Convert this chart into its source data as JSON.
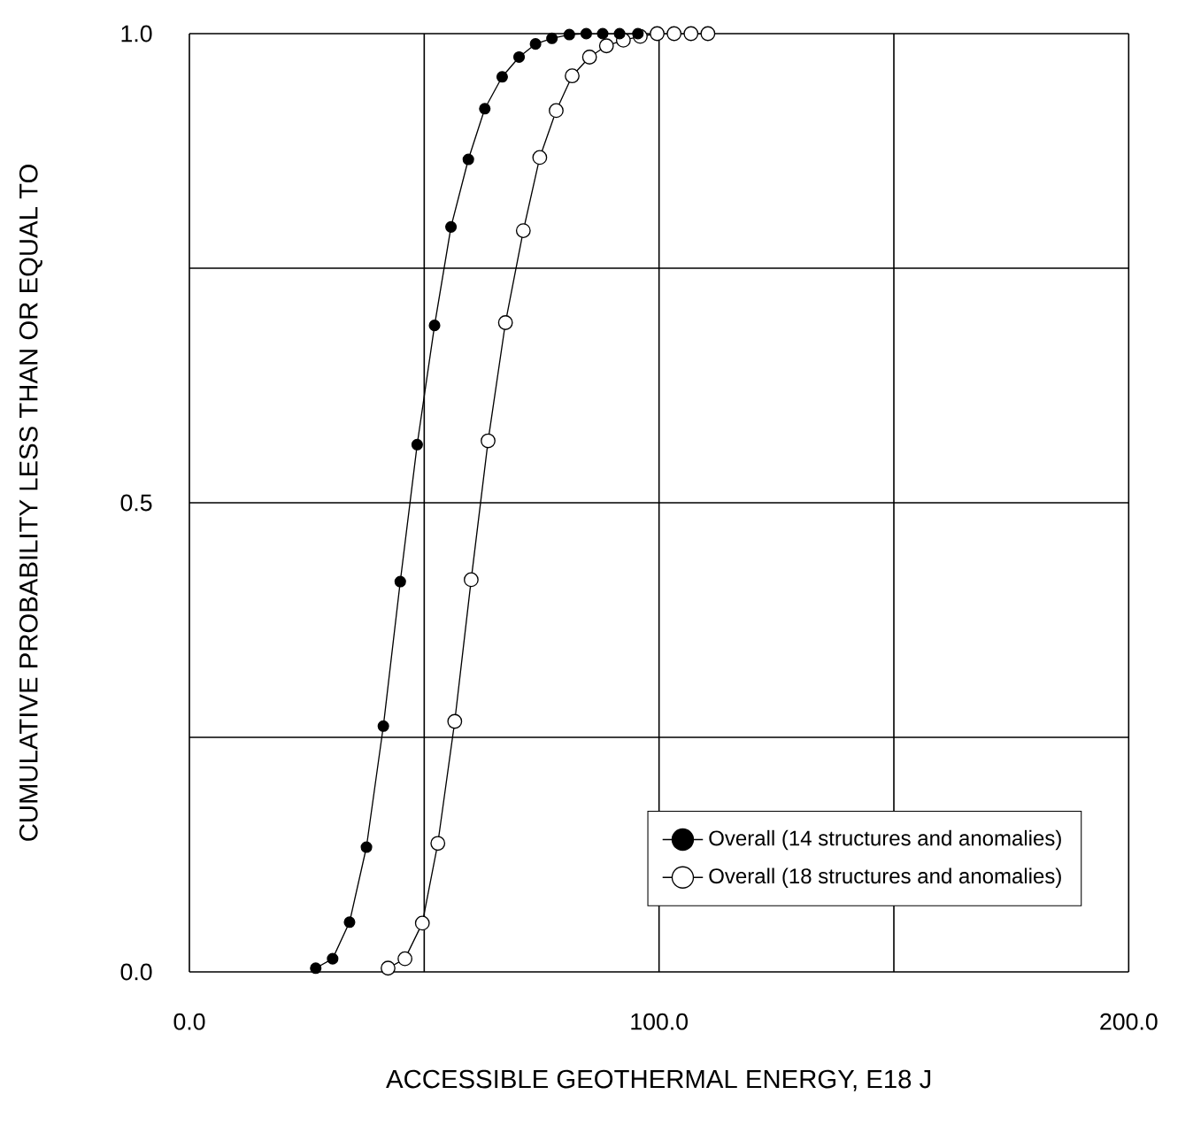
{
  "chart_data": {
    "type": "line",
    "xlabel": "ACCESSIBLE GEOTHERMAL ENERGY, E18 J",
    "ylabel": "CUMULATIVE PROBABILITY LESS THAN OR EQUAL TO",
    "xlim": [
      0,
      200
    ],
    "ylim": [
      0,
      1
    ],
    "xticks": [
      {
        "value": 0,
        "label": "0.0"
      },
      {
        "value": 50,
        "label": null
      },
      {
        "value": 100,
        "label": "100.0"
      },
      {
        "value": 150,
        "label": null
      },
      {
        "value": 200,
        "label": "200.0"
      }
    ],
    "yticks": [
      {
        "value": 0,
        "label": "0.0"
      },
      {
        "value": 0.25,
        "label": null
      },
      {
        "value": 0.5,
        "label": "0.5"
      },
      {
        "value": 0.75,
        "label": null
      },
      {
        "value": 1,
        "label": "1.0"
      }
    ],
    "grid": true,
    "legend": "bottom right",
    "marker": "circle",
    "line_style": "solid",
    "series": [
      {
        "name": "Overall (14 structures and anomalies)",
        "color": "#000000",
        "x": [
          26.9,
          30.5,
          34.1,
          37.7,
          41.3,
          44.9,
          48.5,
          52.2,
          55.7,
          59.4,
          62.9,
          66.6,
          70.2,
          73.7,
          77.2,
          80.9,
          84.5,
          88.0,
          91.6,
          95.5
        ],
        "values": [
          0.004,
          0.014,
          0.053,
          0.133,
          0.262,
          0.416,
          0.562,
          0.689,
          0.794,
          0.866,
          0.92,
          0.954,
          0.975,
          0.989,
          0.995,
          0.999,
          1.0,
          1.0,
          1.0,
          1.0
        ]
      },
      {
        "name": "Overall (18 structures and anomalies)",
        "color": "#000000",
        "x": [
          42.3,
          45.9,
          49.6,
          52.9,
          56.5,
          60.0,
          63.6,
          67.3,
          71.1,
          74.6,
          78.1,
          81.5,
          85.2,
          88.8,
          92.4,
          96.0,
          99.6,
          103.2,
          106.8,
          110.4
        ],
        "values": [
          0.004,
          0.014,
          0.052,
          0.137,
          0.267,
          0.418,
          0.566,
          0.692,
          0.79,
          0.868,
          0.918,
          0.955,
          0.975,
          0.987,
          0.993,
          0.997,
          1.0,
          1.0,
          1.0,
          1.0
        ]
      }
    ]
  }
}
